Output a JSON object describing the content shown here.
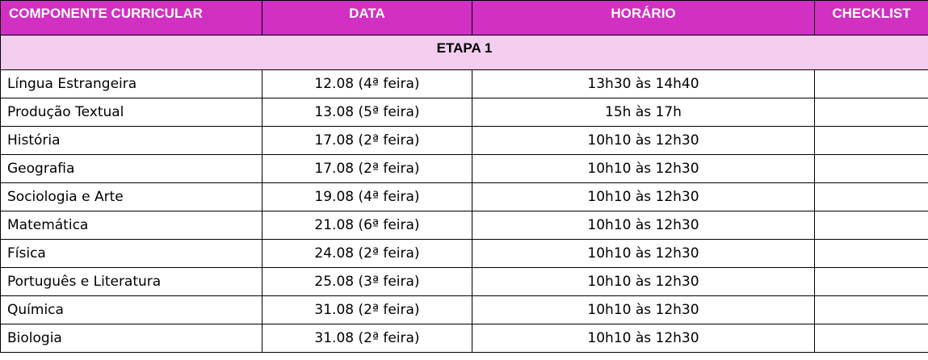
{
  "colors": {
    "header_bg": "#d22fc3",
    "header_text": "#ffffff",
    "stage_bg": "#f2cdee",
    "border": "#000000"
  },
  "table": {
    "headers": [
      "COMPONENTE CURRICULAR",
      "DATA",
      "HORÁRIO",
      "CHECKLIST"
    ],
    "stage_label": "ETAPA 1",
    "rows": [
      {
        "subject": "Língua Estrangeira",
        "date": "12.08 (4ª feira)",
        "time": "13h30 às 14h40",
        "checklist": ""
      },
      {
        "subject": "Produção Textual",
        "date": "13.08 (5ª feira)",
        "time": "15h às 17h",
        "checklist": ""
      },
      {
        "subject": "História",
        "date": "17.08 (2ª feira)",
        "time": "10h10 às 12h30",
        "checklist": ""
      },
      {
        "subject": "Geografia",
        "date": "17.08 (2ª feira)",
        "time": "10h10 às 12h30",
        "checklist": ""
      },
      {
        "subject": "Sociologia e Arte",
        "date": "19.08 (4ª feira)",
        "time": "10h10 às 12h30",
        "checklist": ""
      },
      {
        "subject": "Matemática",
        "date": "21.08 (6ª feira)",
        "time": "10h10 às 12h30",
        "checklist": ""
      },
      {
        "subject": "Física",
        "date": "24.08 (2ª feira)",
        "time": "10h10 às 12h30",
        "checklist": ""
      },
      {
        "subject": "Português e Literatura",
        "date": "25.08 (3ª feira)",
        "time": "10h10 às 12h30",
        "checklist": ""
      },
      {
        "subject": "Química",
        "date": "31.08 (2ª feira)",
        "time": "10h10 às 12h30",
        "checklist": ""
      },
      {
        "subject": "Biologia",
        "date": "31.08 (2ª feira)",
        "time": "10h10 às 12h30",
        "checklist": ""
      }
    ]
  }
}
